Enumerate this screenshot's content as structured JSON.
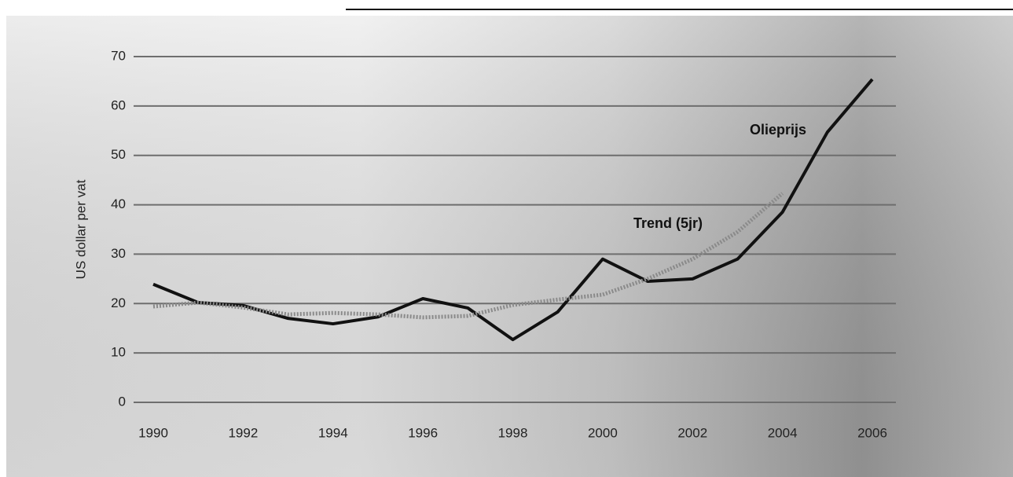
{
  "chart_data": {
    "type": "line",
    "ylabel": "US dollar per vat",
    "x": [
      1990,
      1991,
      1992,
      1993,
      1994,
      1995,
      1996,
      1997,
      1998,
      1999,
      2000,
      2001,
      2002,
      2003,
      2004,
      2005,
      2006
    ],
    "series": [
      {
        "name": "Olieprijs",
        "color": "#111111",
        "style": "solid",
        "values": [
          23.9,
          20.2,
          19.6,
          17.0,
          15.9,
          17.3,
          21.0,
          19.1,
          12.7,
          18.3,
          29.0,
          24.5,
          25.0,
          29.0,
          38.5,
          54.7,
          65.4
        ]
      },
      {
        "name": "Trend (5jr)",
        "color": "#8a8a8a",
        "style": "dotted",
        "values": [
          19.4,
          20.2,
          19.2,
          17.8,
          18.1,
          17.8,
          17.2,
          17.5,
          19.7,
          20.8,
          21.8,
          25.0,
          29.0,
          34.5,
          42.3,
          null,
          null
        ]
      }
    ],
    "xlim": [
      1990,
      2006
    ],
    "xticks": [
      1990,
      1992,
      1994,
      1996,
      1998,
      2000,
      2002,
      2004,
      2006
    ],
    "ylim": [
      0,
      70
    ],
    "yticks": [
      0,
      10,
      20,
      30,
      40,
      50,
      60,
      70
    ],
    "grid": true
  }
}
